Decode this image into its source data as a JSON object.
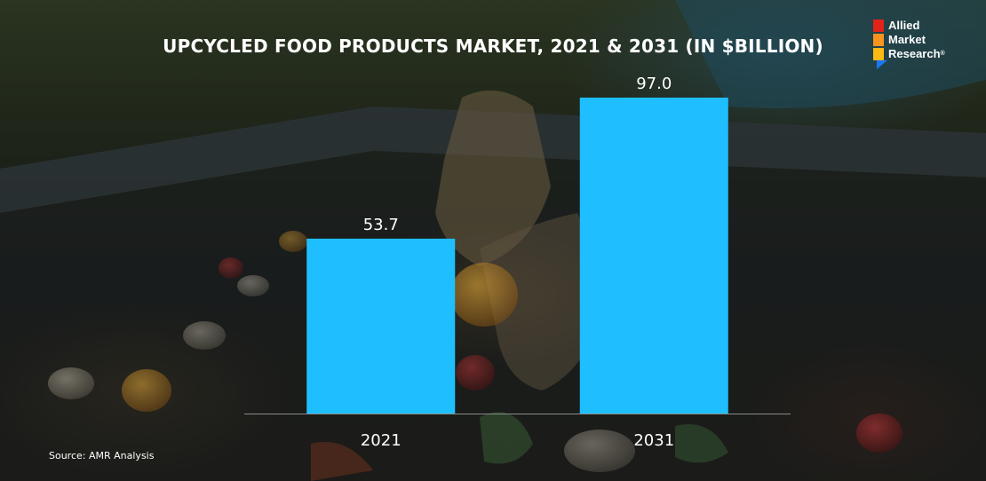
{
  "header": {
    "title": "UPCYCLED FOOD PRODUCTS MARKET, 2021 & 2031 (IN $BILLION)"
  },
  "logo": {
    "line1": "Allied",
    "line2": "Market",
    "line3": "Research",
    "mark": "®",
    "colors": [
      "#e2231a",
      "#f7941d",
      "#fdb913"
    ],
    "tail_color": "#1877f2"
  },
  "footer": {
    "source": "Source: AMR Analysis"
  },
  "chart_data": {
    "type": "bar",
    "title": "UPCYCLED FOOD PRODUCTS MARKET, 2021 & 2031 (IN $BILLION)",
    "categories": [
      "2021",
      "2031"
    ],
    "values": [
      53.7,
      97.0
    ],
    "value_labels": [
      "53.7",
      "97.0"
    ],
    "xlabel": "",
    "ylabel": "",
    "ylim": [
      0,
      100
    ],
    "grid": false,
    "bar_color": "#1fbfff",
    "axis_color": "#8a8a8a"
  }
}
